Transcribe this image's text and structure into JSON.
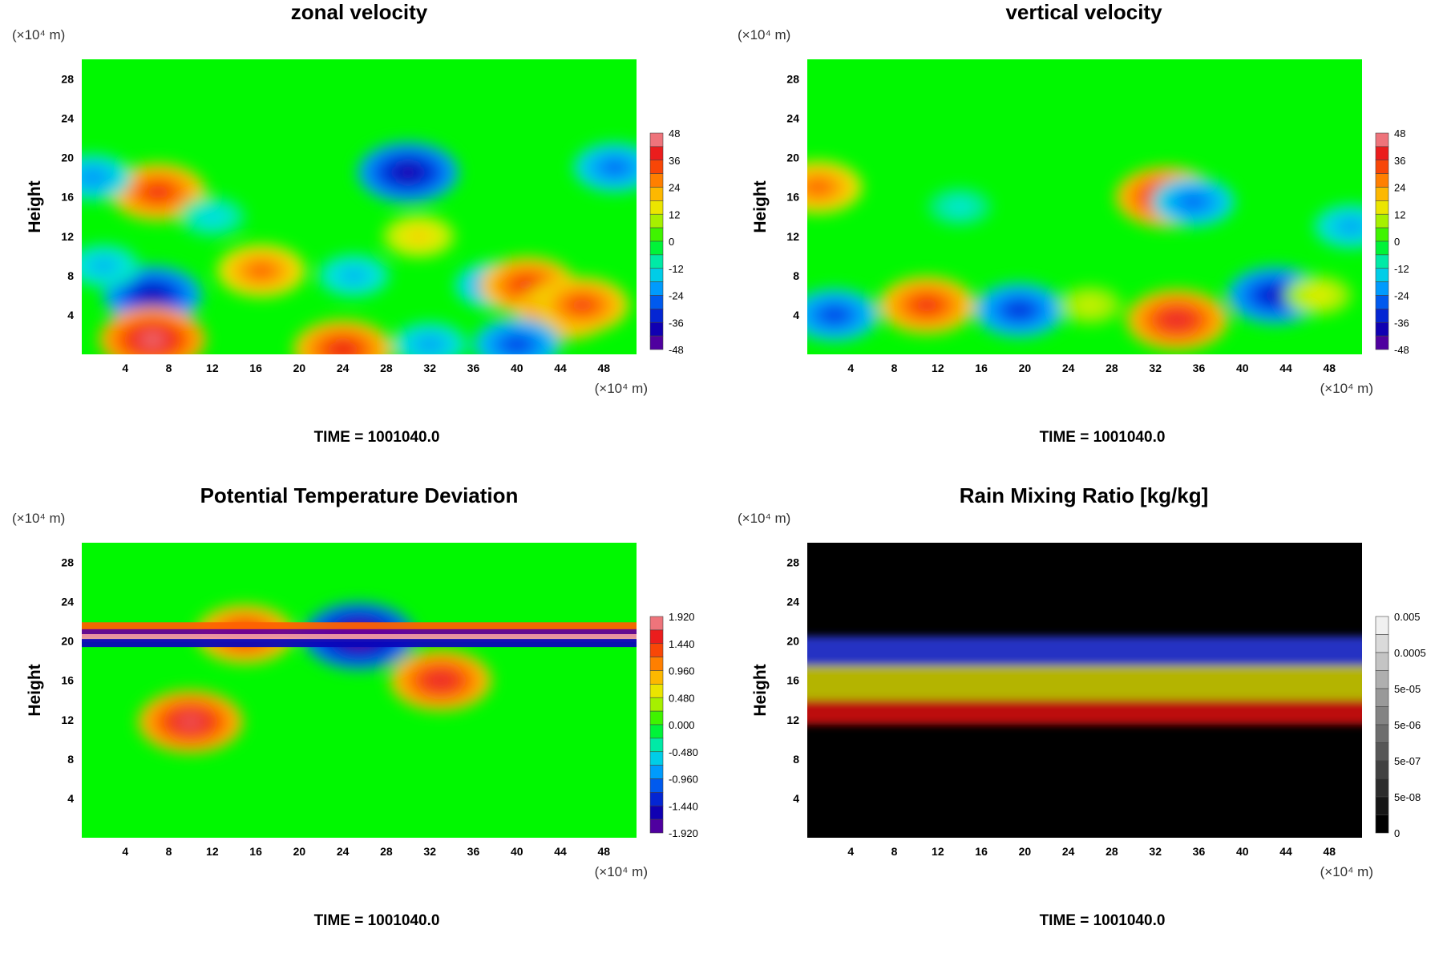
{
  "figure_time_label": "TIME = 1001040.0",
  "axis_unit_label": "(×10⁴ m)",
  "x_ticks": [
    "4",
    "8",
    "12",
    "16",
    "20",
    "24",
    "28",
    "32",
    "36",
    "40",
    "44",
    "48"
  ],
  "y_ticks": [
    "4",
    "8",
    "12",
    "16",
    "20",
    "24",
    "28"
  ],
  "y_axis_label": "Height",
  "chart_data": [
    {
      "type": "heatmap",
      "title": "zonal velocity",
      "xlabel": "(×10⁴ m)",
      "ylabel": "Height",
      "y_unit": "(×10⁴ m)",
      "xlim": [
        0,
        51
      ],
      "ylim": [
        0,
        30
      ],
      "x_ticks": [
        4,
        8,
        12,
        16,
        20,
        24,
        28,
        32,
        36,
        40,
        44,
        48
      ],
      "y_ticks": [
        4,
        8,
        12,
        16,
        20,
        24,
        28
      ],
      "colorbar": {
        "labels": [
          "48",
          "36",
          "24",
          "12",
          "0",
          "-12",
          "-24",
          "-36",
          "-48"
        ],
        "min": -48,
        "max": 48
      },
      "background_value": 0,
      "features": [
        {
          "x": 6.5,
          "y": 6,
          "value": -38
        },
        {
          "x": 2,
          "y": 9,
          "value": -18
        },
        {
          "x": 16.5,
          "y": 8.5,
          "value": 30
        },
        {
          "x": 25,
          "y": 8,
          "value": -18
        },
        {
          "x": 38,
          "y": 7,
          "value": -24
        },
        {
          "x": 41,
          "y": 7,
          "value": 36
        },
        {
          "x": 44.5,
          "y": 4.5,
          "value": 38
        },
        {
          "x": 46,
          "y": 5,
          "value": 34
        },
        {
          "x": 6.5,
          "y": 1.5,
          "value": 44
        },
        {
          "x": 24,
          "y": 0.5,
          "value": 38
        },
        {
          "x": 32,
          "y": 1,
          "value": -20
        },
        {
          "x": 40,
          "y": 1,
          "value": -30
        },
        {
          "x": 30,
          "y": 18.5,
          "value": -40
        },
        {
          "x": 7,
          "y": 16.5,
          "value": 36
        },
        {
          "x": 1,
          "y": 18,
          "value": -22
        },
        {
          "x": 49,
          "y": 19,
          "value": -26
        },
        {
          "x": 31,
          "y": 12,
          "value": 18
        },
        {
          "x": 12,
          "y": 14,
          "value": -14
        }
      ],
      "time_label": "TIME = 1001040.0"
    },
    {
      "type": "heatmap",
      "title": "vertical velocity",
      "xlabel": "(×10⁴ m)",
      "ylabel": "Height",
      "y_unit": "(×10⁴ m)",
      "xlim": [
        0,
        51
      ],
      "ylim": [
        0,
        30
      ],
      "x_ticks": [
        4,
        8,
        12,
        16,
        20,
        24,
        28,
        32,
        36,
        40,
        44,
        48
      ],
      "y_ticks": [
        4,
        8,
        12,
        16,
        20,
        24,
        28
      ],
      "colorbar": {
        "labels": [
          "48",
          "36",
          "24",
          "12",
          "0",
          "-12",
          "-24",
          "-36",
          "-48"
        ],
        "min": -48,
        "max": 48
      },
      "background_value": 0,
      "features": [
        {
          "x": 11,
          "y": 5,
          "value": 36
        },
        {
          "x": 2.5,
          "y": 4,
          "value": -30
        },
        {
          "x": 19.5,
          "y": 4.5,
          "value": -32
        },
        {
          "x": 34,
          "y": 3.5,
          "value": 40
        },
        {
          "x": 43,
          "y": 6,
          "value": -36
        },
        {
          "x": 33,
          "y": 16,
          "value": 40
        },
        {
          "x": 35.5,
          "y": 15.5,
          "value": -26
        },
        {
          "x": 1,
          "y": 17,
          "value": 30
        },
        {
          "x": 26,
          "y": 5,
          "value": 12
        },
        {
          "x": 47,
          "y": 6,
          "value": 14
        },
        {
          "x": 14,
          "y": 15,
          "value": -12
        },
        {
          "x": 50,
          "y": 13,
          "value": -20
        }
      ],
      "time_label": "TIME = 1001040.0"
    },
    {
      "type": "heatmap",
      "title": "Potential Temperature Deviation",
      "xlabel": "(×10⁴ m)",
      "ylabel": "Height",
      "y_unit": "(×10⁴ m)",
      "xlim": [
        0,
        51
      ],
      "ylim": [
        0,
        30
      ],
      "x_ticks": [
        4,
        8,
        12,
        16,
        20,
        24,
        28,
        32,
        36,
        40,
        44,
        48
      ],
      "y_ticks": [
        4,
        8,
        12,
        16,
        20,
        24,
        28
      ],
      "colorbar": {
        "labels": [
          "1.920",
          "1.440",
          "0.960",
          "0.480",
          "0.000",
          "-0.480",
          "-0.960",
          "-1.440",
          "-1.920"
        ],
        "min": -1.92,
        "max": 1.92
      },
      "background_value": 0,
      "features": [
        {
          "x": 33,
          "y": 16,
          "value": 1.6
        },
        {
          "x": 10,
          "y": 11.8,
          "value": 1.7
        },
        {
          "x": 25.5,
          "y": 20.5,
          "value": -1.9
        },
        {
          "x": 15,
          "y": 20.7,
          "value": 1.5
        }
      ],
      "bands": [
        {
          "y": 21.5,
          "value": 1.2
        },
        {
          "y": 20.8,
          "value": -1.9
        },
        {
          "y": 20.3,
          "value": 1.9
        },
        {
          "y": 19.8,
          "value": -1.5
        }
      ],
      "time_label": "TIME = 1001040.0"
    },
    {
      "type": "heatmap",
      "title": "Rain Mixing Ratio [kg/kg]",
      "xlabel": "(×10⁴ m)",
      "ylabel": "Height",
      "y_unit": "(×10⁴ m)",
      "xlim": [
        0,
        51
      ],
      "ylim": [
        0,
        30
      ],
      "x_ticks": [
        4,
        8,
        12,
        16,
        20,
        24,
        28,
        32,
        36,
        40,
        44,
        48
      ],
      "y_ticks": [
        4,
        8,
        12,
        16,
        20,
        24,
        28
      ],
      "colorbar": {
        "labels": [
          "0.005",
          "0.0005",
          "5e-05",
          "5e-06",
          "5e-07",
          "5e-08",
          "0"
        ],
        "scale": "log",
        "min": 0,
        "max": 0.005
      },
      "background_value": 0,
      "layers": [
        {
          "y_range": [
            17.5,
            20.5
          ],
          "value": 0.0005,
          "color": "blue"
        },
        {
          "y_range": [
            14,
            17.5
          ],
          "value": 5e-05,
          "color": "yellow"
        },
        {
          "y_range": [
            11.5,
            14
          ],
          "value": 5e-06,
          "color": "red"
        }
      ],
      "time_label": "TIME = 1001040.0"
    }
  ]
}
